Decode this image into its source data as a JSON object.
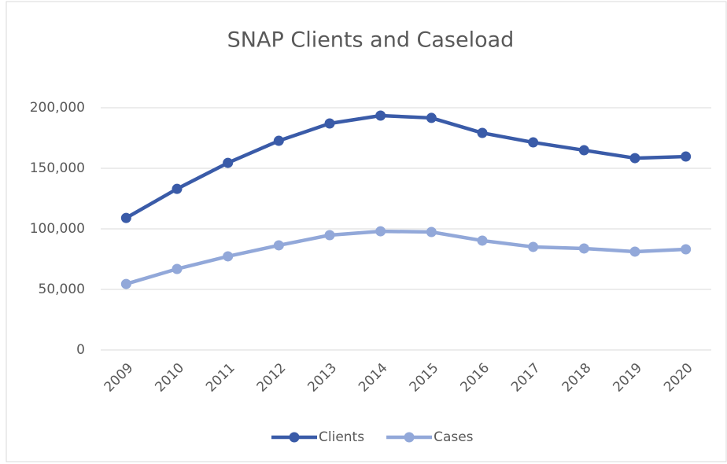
{
  "chart_data": {
    "type": "line",
    "title": "SNAP Clients and Caseload",
    "categories": [
      "2009",
      "2010",
      "2011",
      "2012",
      "2013",
      "2014",
      "2015",
      "2016",
      "2017",
      "2018",
      "2019",
      "2020"
    ],
    "series": [
      {
        "name": "Clients",
        "color": "#3a5ba8",
        "values": [
          109000,
          133000,
          154500,
          172700,
          187000,
          193500,
          191600,
          179200,
          171400,
          164900,
          158400,
          159700
        ]
      },
      {
        "name": "Cases",
        "color": "#92a8d9",
        "values": [
          54500,
          66900,
          77300,
          86400,
          94800,
          98000,
          97400,
          90300,
          85100,
          83800,
          81200,
          83100
        ]
      }
    ],
    "ylim": [
      0,
      200000
    ],
    "yticks": [
      0,
      {
        "value": 50000,
        "label": "50,000"
      },
      {
        "value": 100000,
        "label": "100,000"
      },
      {
        "value": 150000,
        "label": "150,000"
      },
      {
        "value": 200000,
        "label": "200,000"
      }
    ],
    "grid": true,
    "legend": "bottom"
  }
}
